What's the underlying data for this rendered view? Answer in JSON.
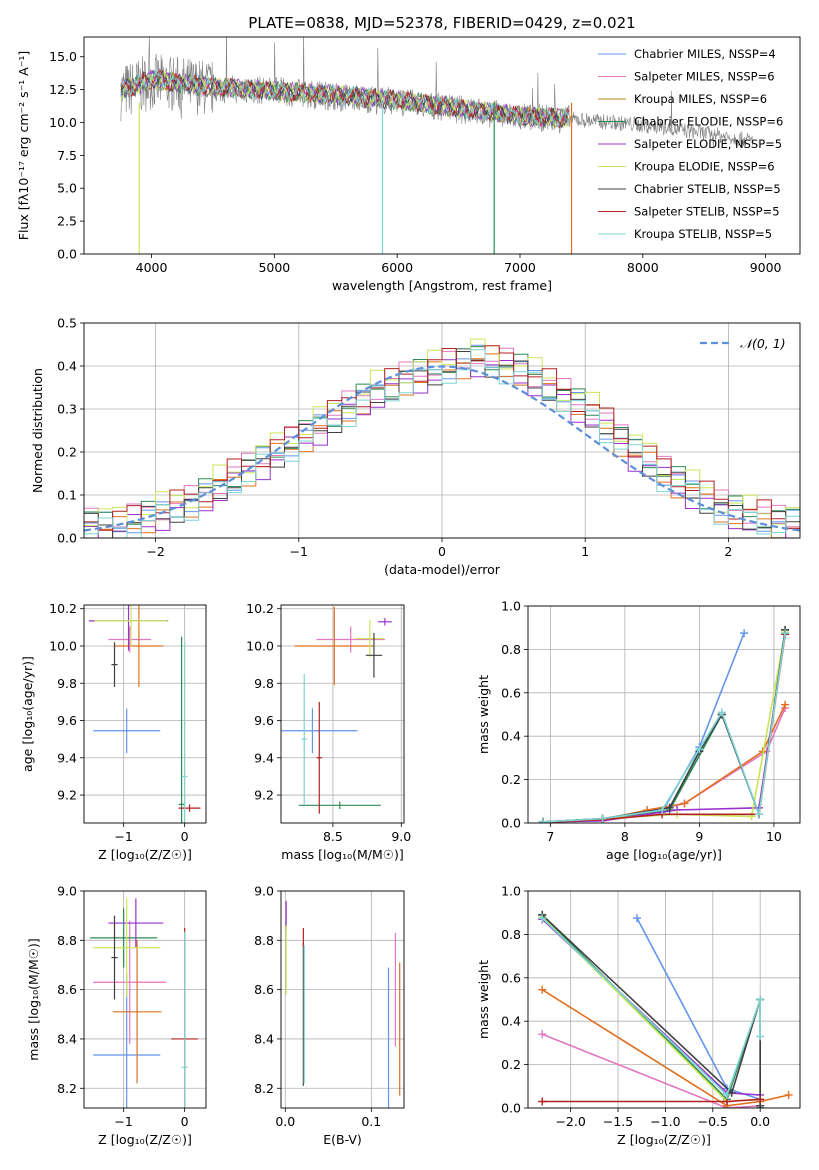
{
  "title": "PLATE=0838, MJD=52378, FIBERID=0429, z=0.021",
  "chart_data": [
    {
      "id": "spectrum",
      "type": "line",
      "xlabel": "wavelength [Angstrom, rest frame]",
      "ylabel": "Flux [fλ10⁻¹⁷ erg cm⁻² s⁻¹ A⁻¹]",
      "xlim": [
        3450,
        9280
      ],
      "ylim": [
        0,
        16.5
      ],
      "xticks": [
        "4000",
        "5000",
        "6000",
        "7000",
        "8000",
        "9000"
      ],
      "yticks": [
        "0.0",
        "2.5",
        "5.0",
        "7.5",
        "10.0",
        "12.5",
        "15.0"
      ],
      "grid": false,
      "legend_position": "top-right",
      "legend": [
        "Chabrier MILES, NSSP=4",
        "Salpeter MILES, NSSP=6",
        "Kroupa MILES, NSSP=6",
        "Chabrier ELODIE, NSSP=6",
        "Salpeter ELODIE, NSSP=5",
        "Kroupa ELODIE, NSSP=6",
        "Chabrier STELIB, NSSP=5",
        "Salpeter STELIB, NSSP=5",
        "Kroupa STELIB, NSSP=5"
      ],
      "data_continuum": [
        [
          3750,
          12.3
        ],
        [
          4000,
          13.1
        ],
        [
          4500,
          12.6
        ],
        [
          5000,
          12.4
        ],
        [
          5500,
          12.0
        ],
        [
          6000,
          11.6
        ],
        [
          6500,
          11.0
        ],
        [
          7000,
          10.4
        ],
        [
          7500,
          10.2
        ],
        [
          8000,
          9.8
        ],
        [
          8500,
          9.2
        ],
        [
          8900,
          8.6
        ]
      ],
      "model_continuum": [
        [
          3750,
          12.4
        ],
        [
          4000,
          13.3
        ],
        [
          4500,
          12.7
        ],
        [
          5000,
          12.4
        ],
        [
          5500,
          12.1
        ],
        [
          6000,
          11.7
        ],
        [
          6500,
          11.1
        ],
        [
          7000,
          10.5
        ],
        [
          7400,
          10.3
        ]
      ]
    },
    {
      "id": "residual_histogram",
      "type": "bar",
      "xlabel": "(data-model)/error",
      "ylabel": "Normed distribution",
      "xlim": [
        -2.5,
        2.5
      ],
      "ylim": [
        0,
        0.5
      ],
      "xticks": [
        "−2",
        "−1",
        "0",
        "1",
        "2"
      ],
      "yticks": [
        "0.0",
        "0.1",
        "0.2",
        "0.3",
        "0.4",
        "0.5"
      ],
      "grid": true,
      "legend_position": "top-right",
      "legend": [
        "𝒩(0, 1)"
      ],
      "bin_edges_start": -2.5,
      "bin_width": 0.1,
      "counts": [
        0.035,
        0.03,
        0.03,
        0.04,
        0.05,
        0.06,
        0.07,
        0.08,
        0.1,
        0.12,
        0.14,
        0.16,
        0.18,
        0.2,
        0.22,
        0.24,
        0.26,
        0.28,
        0.3,
        0.32,
        0.34,
        0.35,
        0.37,
        0.38,
        0.39,
        0.4,
        0.41,
        0.42,
        0.41,
        0.4,
        0.39,
        0.37,
        0.35,
        0.33,
        0.31,
        0.29,
        0.26,
        0.23,
        0.2,
        0.18,
        0.15,
        0.13,
        0.11,
        0.09,
        0.07,
        0.06,
        0.05,
        0.045,
        0.04,
        0.035
      ]
    },
    {
      "id": "age_vs_Z",
      "type": "scatter",
      "xlabel": "Z [log₁₀(Z/Z☉)]",
      "ylabel": "age  [log₁₀(age/yr)]",
      "xlim": [
        -1.65,
        0.35
      ],
      "ylim": [
        9.05,
        10.22
      ],
      "xticks": [
        "−1",
        "0"
      ],
      "yticks": [
        "9.2",
        "9.4",
        "9.6",
        "9.8",
        "10.0",
        "10.2"
      ],
      "grid": true,
      "errorbars": [
        {
          "color": "#6495ed",
          "x": -0.95,
          "xerr": 0.55,
          "y": 9.545,
          "yerr": 0.12
        },
        {
          "color": "#e377c2",
          "x": -0.9,
          "xerr": 0.35,
          "y": 10.035,
          "yerr": 0.07
        },
        {
          "color": "#e07020",
          "x": -0.75,
          "xerr": 0.4,
          "y": 10.0,
          "yerr": 0.22
        },
        {
          "color": "#2e8b57",
          "x": -0.05,
          "xerr": 0.05,
          "y": 9.15,
          "yerr": 0.9
        },
        {
          "color": "#9932cc",
          "x": -0.92,
          "xerr": 0.65,
          "y": 10.135,
          "yerr": 0.16
        },
        {
          "color": "#c9e65a",
          "x": -0.88,
          "xerr": 0.6,
          "y": 10.135,
          "yerr": 0.14
        },
        {
          "color": "#404040",
          "x": -1.15,
          "xerr": 0.05,
          "y": 9.9,
          "yerr": 0.12
        },
        {
          "color": "#b22222",
          "x": 0.08,
          "xerr": 0.18,
          "y": 9.13,
          "yerr": 0.02
        },
        {
          "color": "#7fd3d3",
          "x": 0.0,
          "xerr": 0.05,
          "y": 9.3,
          "yerr": 0.72
        }
      ]
    },
    {
      "id": "age_vs_mass",
      "type": "scatter",
      "xlabel": "mass [log₁₀(M/M☉)]",
      "ylabel": "",
      "xlim": [
        8.12,
        9.02
      ],
      "ylim": [
        9.05,
        10.22
      ],
      "xticks": [
        "8.5",
        "9.0"
      ],
      "yticks": [
        "9.2",
        "9.4",
        "9.6",
        "9.8",
        "10.0",
        "10.2"
      ],
      "grid": true,
      "errorbars": [
        {
          "color": "#6495ed",
          "x": 8.35,
          "xerr": 0.33,
          "y": 9.545,
          "yerr": 0.12
        },
        {
          "color": "#e377c2",
          "x": 8.63,
          "xerr": 0.25,
          "y": 10.035,
          "yerr": 0.07
        },
        {
          "color": "#e07020",
          "x": 8.51,
          "xerr": 0.29,
          "y": 10.0,
          "yerr": 0.21
        },
        {
          "color": "#2e8b57",
          "x": 8.55,
          "xerr": 0.3,
          "y": 9.145,
          "yerr": 0.02
        },
        {
          "color": "#9932cc",
          "x": 8.88,
          "xerr": 0.05,
          "y": 10.13,
          "yerr": 0.02
        },
        {
          "color": "#c9e65a",
          "x": 8.77,
          "xerr": 0.1,
          "y": 10.04,
          "yerr": 0.1
        },
        {
          "color": "#404040",
          "x": 8.8,
          "xerr": 0.06,
          "y": 9.95,
          "yerr": 0.12
        },
        {
          "color": "#b22222",
          "x": 8.4,
          "xerr": 0.02,
          "y": 9.4,
          "yerr": 0.3
        },
        {
          "color": "#7fd3d3",
          "x": 8.29,
          "xerr": 0.02,
          "y": 9.5,
          "yerr": 0.35
        }
      ]
    },
    {
      "id": "mass_weight_vs_age",
      "type": "line",
      "xlabel": "age  [log₁₀(age/yr)]",
      "ylabel": "mass weight",
      "xlim": [
        6.7,
        10.35
      ],
      "ylim": [
        0,
        1.0
      ],
      "xticks": [
        "7",
        "8",
        "9",
        "10"
      ],
      "yticks": [
        "0.0",
        "0.2",
        "0.4",
        "0.6",
        "0.8",
        "1.0"
      ],
      "grid": true,
      "series": [
        {
          "color": "#6495ed",
          "x": [
            6.9,
            7.7,
            8.5,
            9.0,
            9.6
          ],
          "y": [
            0.005,
            0.02,
            0.05,
            0.35,
            0.875
          ]
        },
        {
          "color": "#e377c2",
          "x": [
            6.9,
            7.7,
            8.3,
            8.8,
            9.9,
            10.15
          ],
          "y": [
            0.005,
            0.015,
            0.05,
            0.09,
            0.33,
            0.53
          ]
        },
        {
          "color": "#e07020",
          "x": [
            6.9,
            7.7,
            8.3,
            8.8,
            9.85,
            10.15
          ],
          "y": [
            0.005,
            0.015,
            0.06,
            0.09,
            0.33,
            0.545
          ]
        },
        {
          "color": "#2e8b57",
          "x": [
            6.9,
            7.7,
            8.6,
            9.3,
            9.8,
            10.15
          ],
          "y": [
            0.005,
            0.02,
            0.06,
            0.5,
            0.04,
            0.89
          ]
        },
        {
          "color": "#9932cc",
          "x": [
            6.9,
            7.7,
            8.7,
            9.8,
            10.15
          ],
          "y": [
            0.005,
            0.01,
            0.06,
            0.07,
            0.87
          ]
        },
        {
          "color": "#c9e65a",
          "x": [
            6.9,
            7.7,
            8.7,
            9.7,
            10.15
          ],
          "y": [
            0.005,
            0.02,
            0.04,
            0.03,
            0.88
          ]
        },
        {
          "color": "#404040",
          "x": [
            6.9,
            7.7,
            8.6,
            9.0,
            9.3,
            9.8,
            10.15
          ],
          "y": [
            0.005,
            0.02,
            0.07,
            0.33,
            0.5,
            0.04,
            0.89
          ]
        },
        {
          "color": "#b22222",
          "x": [
            6.9,
            7.7,
            8.5,
            9.8,
            10.15
          ],
          "y": [
            0.003,
            0.015,
            0.04,
            0.04,
            0.87
          ]
        },
        {
          "color": "#7fd3d3",
          "x": [
            6.9,
            7.7,
            8.5,
            9.0,
            9.3,
            9.8,
            10.15
          ],
          "y": [
            0.005,
            0.02,
            0.06,
            0.34,
            0.51,
            0.04,
            0.875
          ]
        }
      ]
    },
    {
      "id": "mass_vs_Z",
      "type": "scatter",
      "xlabel": "Z [log₁₀(Z/Z☉)]",
      "ylabel": "mass [log₁₀(M/M☉)]",
      "xlim": [
        -1.65,
        0.35
      ],
      "ylim": [
        8.12,
        9.0
      ],
      "xticks": [
        "−1",
        "0"
      ],
      "yticks": [
        "8.2",
        "8.4",
        "8.6",
        "8.8",
        "9.0"
      ],
      "grid": true,
      "errorbars": [
        {
          "color": "#6495ed",
          "x": -0.95,
          "xerr": 0.55,
          "y": 8.335,
          "yerr": 0.33
        },
        {
          "color": "#e377c2",
          "x": -0.9,
          "xerr": 0.6,
          "y": 8.63,
          "yerr": 0.25
        },
        {
          "color": "#e07020",
          "x": -0.78,
          "xerr": 0.4,
          "y": 8.51,
          "yerr": 0.29
        },
        {
          "color": "#2e8b57",
          "x": -1.0,
          "xerr": 0.55,
          "y": 8.81,
          "yerr": 0.12
        },
        {
          "color": "#9932cc",
          "x": -0.8,
          "xerr": 0.45,
          "y": 8.87,
          "yerr": 0.1
        },
        {
          "color": "#c9e65a",
          "x": -0.95,
          "xerr": 0.55,
          "y": 8.77,
          "yerr": 0.2
        },
        {
          "color": "#404040",
          "x": -1.15,
          "xerr": 0.05,
          "y": 8.73,
          "yerr": 0.17
        },
        {
          "color": "#b22222",
          "x": 0.0,
          "xerr": 0.22,
          "y": 8.4,
          "yerr": 0.45
        },
        {
          "color": "#7fd3d3",
          "x": 0.0,
          "xerr": 0.05,
          "y": 8.285,
          "yerr": 0.55
        }
      ]
    },
    {
      "id": "mass_vs_EBV",
      "type": "scatter",
      "xlabel": "E(B-V)",
      "ylabel": "",
      "xlim": [
        -0.005,
        0.138
      ],
      "ylim": [
        8.12,
        9.0
      ],
      "xticks": [
        "0.0",
        "0.1"
      ],
      "yticks": [
        "8.2",
        "8.4",
        "8.6",
        "8.8",
        "9.0"
      ],
      "grid": true,
      "errorbars": [
        {
          "color": "#6495ed",
          "x": 0.12,
          "xerr": 0.0,
          "y": 8.4,
          "yerr": 0.29
        },
        {
          "color": "#e377c2",
          "x": 0.128,
          "xerr": 0.0,
          "y": 8.6,
          "yerr": 0.23
        },
        {
          "color": "#e07020",
          "x": 0.133,
          "xerr": 0.0,
          "y": 8.44,
          "yerr": 0.27
        },
        {
          "color": "#9932cc",
          "x": 0.001,
          "xerr": 0.0,
          "y": 8.9,
          "yerr": 0.06
        },
        {
          "color": "#c9e65a",
          "x": 0.001,
          "xerr": 0.0,
          "y": 8.72,
          "yerr": 0.14
        },
        {
          "color": "#404040",
          "x": 0.021,
          "xerr": 0.0,
          "y": 8.5,
          "yerr": 0.29
        },
        {
          "color": "#b22222",
          "x": 0.021,
          "xerr": 0.0,
          "y": 8.81,
          "yerr": 0.04
        },
        {
          "color": "#7fd3d3",
          "x": 0.022,
          "xerr": 0.0,
          "y": 8.5,
          "yerr": 0.28
        }
      ]
    },
    {
      "id": "mass_weight_vs_Z",
      "type": "line",
      "xlabel": "Z [log₁₀(Z/Z☉)]",
      "ylabel": "mass weight",
      "xlim": [
        -2.45,
        0.42
      ],
      "ylim": [
        0,
        1.0
      ],
      "xticks": [
        "−2.0",
        "−1.5",
        "−1.0",
        "−0.5",
        "0.0"
      ],
      "yticks": [
        "0.0",
        "0.2",
        "0.4",
        "0.6",
        "0.8",
        "1.0"
      ],
      "grid": true,
      "series": [
        {
          "color": "#6495ed",
          "x": [
            -1.3,
            -0.35,
            0.0,
            0.0
          ],
          "y": [
            0.875,
            0.09,
            0.04,
            0.0
          ]
        },
        {
          "color": "#e377c2",
          "x": [
            -2.3,
            -0.35,
            0.0
          ],
          "y": [
            0.34,
            0.0,
            0.01
          ]
        },
        {
          "color": "#e07020",
          "x": [
            -2.3,
            -0.35,
            0.0,
            0.3
          ],
          "y": [
            0.545,
            0.01,
            0.03,
            0.06
          ]
        },
        {
          "color": "#2e8b57",
          "x": [
            -2.3,
            -0.35,
            0.0,
            0.0
          ],
          "y": [
            0.89,
            0.04,
            0.5,
            0.0
          ]
        },
        {
          "color": "#9932cc",
          "x": [
            -2.3,
            -0.35,
            0.0
          ],
          "y": [
            0.87,
            0.07,
            0.06
          ]
        },
        {
          "color": "#c9e65a",
          "x": [
            -2.3,
            -0.35,
            0.0
          ],
          "y": [
            0.88,
            0.03,
            0.04
          ]
        },
        {
          "color": "#404040",
          "x": [
            -2.3,
            -0.3,
            0.0,
            0.0
          ],
          "y": [
            0.89,
            0.07,
            0.5,
            0.01
          ]
        },
        {
          "color": "#b22222",
          "x": [
            -2.3,
            -0.35,
            0.0
          ],
          "y": [
            0.03,
            0.03,
            0.04
          ]
        },
        {
          "color": "#7fd3d3",
          "x": [
            -2.3,
            -0.35,
            0.0,
            0.0
          ],
          "y": [
            0.875,
            0.06,
            0.5,
            0.33
          ]
        }
      ]
    }
  ]
}
